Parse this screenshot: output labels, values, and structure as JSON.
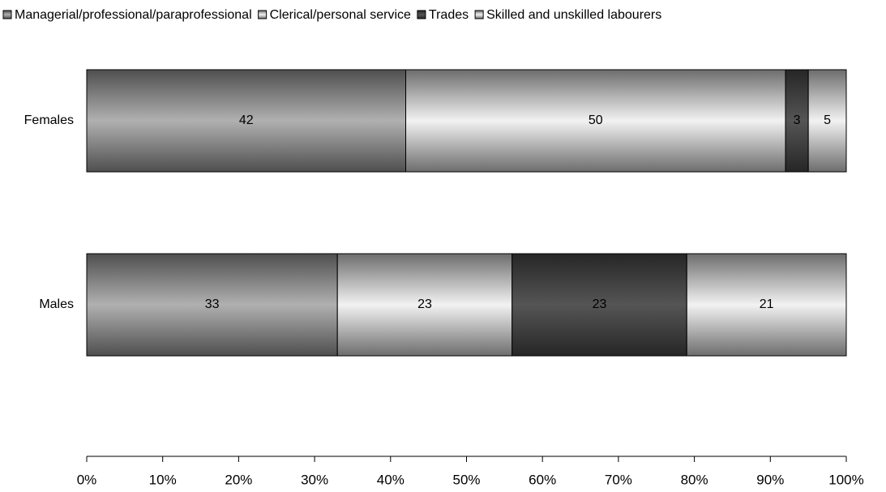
{
  "chart_data": {
    "type": "stacked_bar_horizontal",
    "categories": [
      "Females",
      "Males"
    ],
    "series": [
      {
        "name": "Managerial/professional/paraprofessional",
        "color": "#b0b0b0",
        "values": [
          42,
          33
        ]
      },
      {
        "name": "Clerical/personal service",
        "color": "#f2f2f2",
        "values": [
          50,
          23
        ]
      },
      {
        "name": "Trades",
        "color": "#555555",
        "values": [
          3,
          23
        ]
      },
      {
        "name": "Skilled and unskilled labourers",
        "color": "#f2f2f2",
        "values": [
          5,
          21
        ]
      }
    ],
    "xlim": [
      0,
      100
    ],
    "xticks": [
      {
        "value": 0,
        "label": "0%"
      },
      {
        "value": 10,
        "label": "10%"
      },
      {
        "value": 20,
        "label": "20%"
      },
      {
        "value": 30,
        "label": "30%"
      },
      {
        "value": 40,
        "label": "40%"
      },
      {
        "value": 50,
        "label": "50%"
      },
      {
        "value": 60,
        "label": "60%"
      },
      {
        "value": 70,
        "label": "70%"
      },
      {
        "value": 80,
        "label": "80%"
      },
      {
        "value": 90,
        "label": "90%"
      },
      {
        "value": 100,
        "label": "100%"
      }
    ],
    "legend": "top"
  }
}
